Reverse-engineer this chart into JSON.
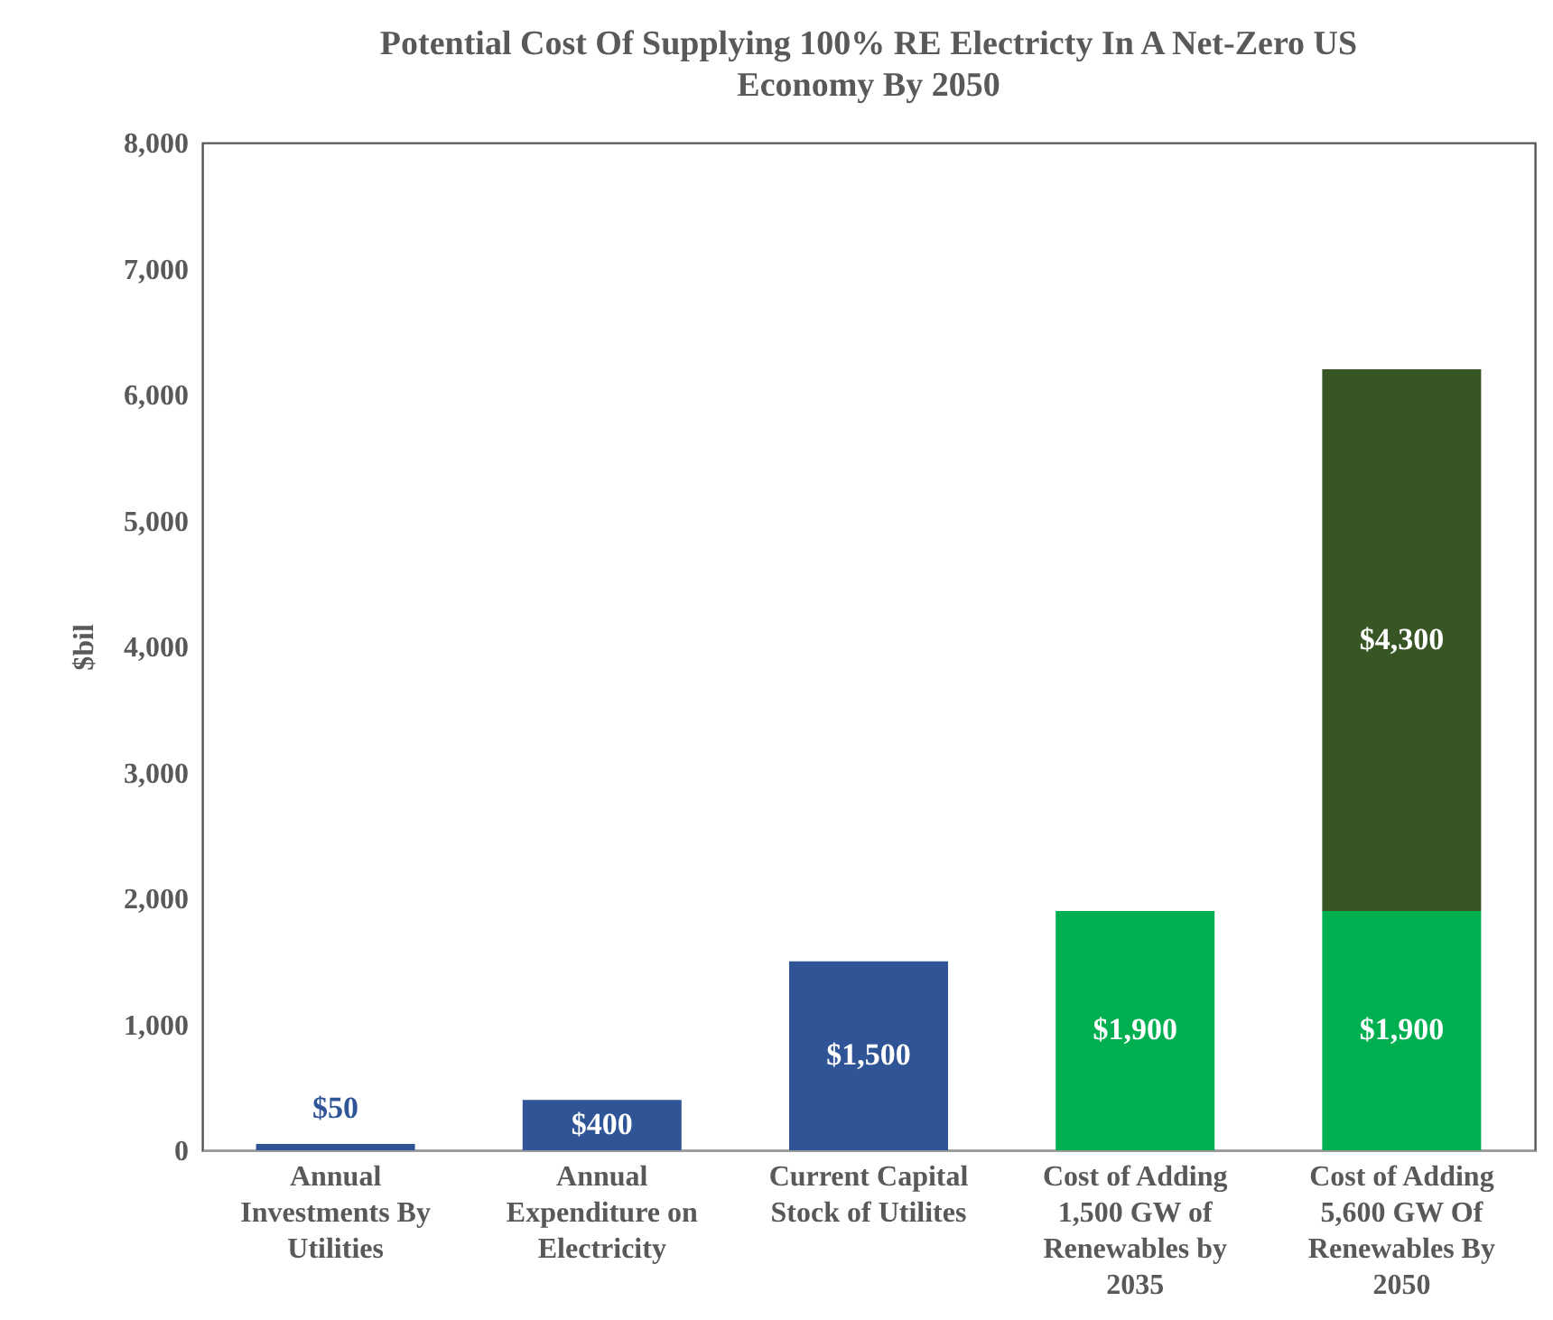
{
  "chart_data": {
    "type": "bar",
    "title": "Potential Cost  Of Supplying 100% RE Electricty In A Net-Zero US Economy By 2050",
    "ylabel": "$bil",
    "categories": [
      "Annual Investments By Utilities",
      "Annual Expenditure on Electricity",
      "Current Capital Stock of Utilites",
      "Cost of Adding 1,500 GW of Renewables by 2035",
      "Cost of Adding 5,600 GW Of Renewables By 2050"
    ],
    "series": [
      {
        "colors": [
          "#2f5597",
          "#2f5597",
          "#2f5597",
          "#00b050",
          "#00b050"
        ],
        "values": [
          50,
          400,
          1500,
          1900,
          1900
        ],
        "value_labels": [
          "$50",
          "$400",
          "$1,500",
          "$1,900",
          "$1,900"
        ]
      },
      {
        "color": "#375623",
        "values": [
          null,
          null,
          null,
          null,
          4300
        ],
        "value_labels": [
          null,
          null,
          null,
          null,
          "$4,300"
        ]
      }
    ],
    "stacked": true,
    "ylim": [
      0,
      8000
    ],
    "yticks": [
      0,
      {
        "value": 1000,
        "label": "1,000"
      },
      {
        "value": 2000,
        "label": "2,000"
      },
      {
        "value": 3000,
        "label": "3,000"
      },
      {
        "value": 4000,
        "label": "4,000"
      },
      {
        "value": 5000,
        "label": "5,000"
      },
      {
        "value": 6000,
        "label": "6,000"
      },
      {
        "value": 7000,
        "label": "7,000"
      },
      {
        "value": 8000,
        "label": "8,000"
      }
    ],
    "grid": false
  }
}
